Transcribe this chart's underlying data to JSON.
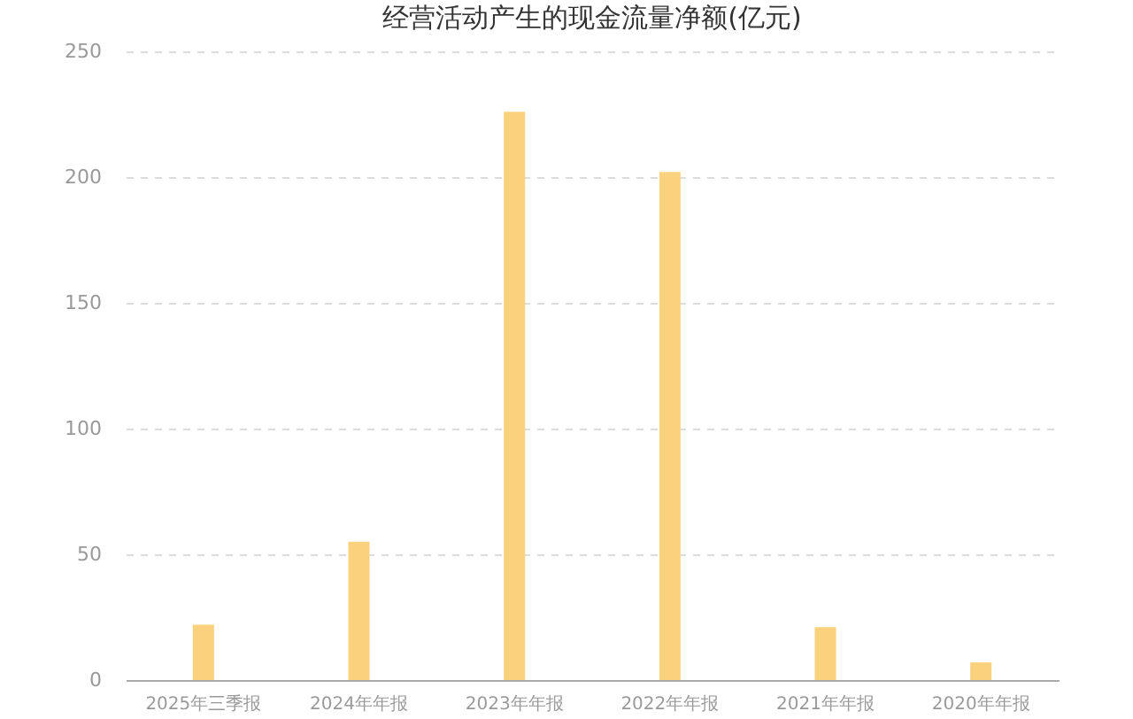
{
  "chart_data": {
    "type": "bar",
    "title": "经营活动产生的现金流量净额(亿元)",
    "categories": [
      "2025年三季报",
      "2024年年报",
      "2023年年报",
      "2022年年报",
      "2021年年报",
      "2020年年报"
    ],
    "values": [
      22,
      55,
      226,
      202,
      21,
      7
    ],
    "color": "#fad27e",
    "ylim": [
      0,
      250
    ],
    "yticks": [
      0,
      50,
      100,
      150,
      200,
      250
    ],
    "grid": "y"
  }
}
